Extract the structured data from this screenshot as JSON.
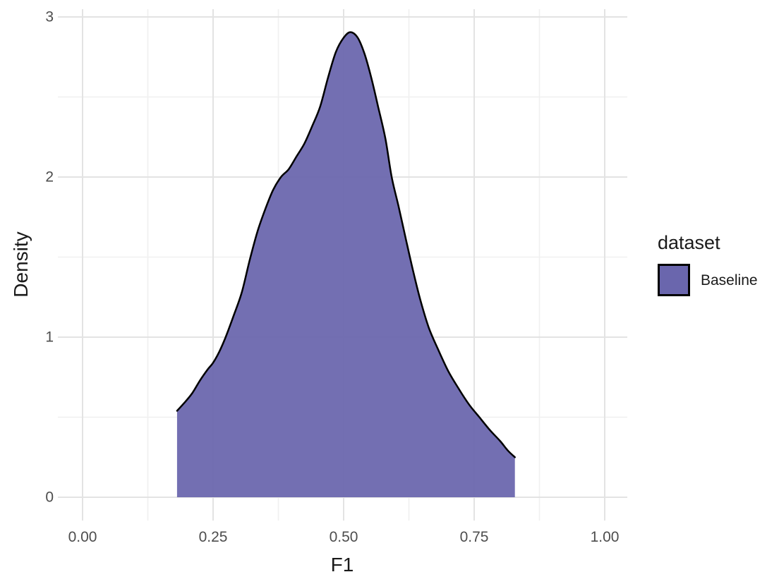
{
  "chart_data": {
    "type": "area",
    "subtype": "density",
    "title": "",
    "xlabel": "F1",
    "ylabel": "Density",
    "x_ticks": [
      0,
      0.25,
      0.5,
      0.75,
      1.0
    ],
    "x_tick_labels": [
      "0.00",
      "0.25",
      "0.50",
      "0.75",
      "1.00"
    ],
    "x_minor_ticks": [
      0.125,
      0.375,
      0.625,
      0.875
    ],
    "y_ticks": [
      0,
      1,
      2,
      3
    ],
    "y_tick_labels": [
      "0",
      "1",
      "2",
      "3"
    ],
    "y_minor_ticks": [
      0.5,
      1.5,
      2.5
    ],
    "xlim": [
      -0.047,
      1.043
    ],
    "ylim": [
      -0.145,
      3.05
    ],
    "grid": true,
    "legend": {
      "title": "dataset",
      "position": "right",
      "entries": [
        {
          "label": "Baseline",
          "fill": "#6A66AD",
          "outline": "#000000"
        }
      ]
    },
    "series": [
      {
        "name": "Baseline",
        "fill": "#6A66AD",
        "fill_opacity": 0.94,
        "stroke": "#000000",
        "stroke_width": 2.5,
        "points": [
          [
            0.181,
            0.54
          ],
          [
            0.195,
            0.59
          ],
          [
            0.21,
            0.65
          ],
          [
            0.225,
            0.73
          ],
          [
            0.24,
            0.8
          ],
          [
            0.25,
            0.84
          ],
          [
            0.262,
            0.91
          ],
          [
            0.274,
            1.0
          ],
          [
            0.29,
            1.14
          ],
          [
            0.305,
            1.28
          ],
          [
            0.32,
            1.48
          ],
          [
            0.335,
            1.66
          ],
          [
            0.35,
            1.8
          ],
          [
            0.365,
            1.92
          ],
          [
            0.38,
            2.0
          ],
          [
            0.395,
            2.05
          ],
          [
            0.41,
            2.13
          ],
          [
            0.425,
            2.21
          ],
          [
            0.44,
            2.32
          ],
          [
            0.455,
            2.44
          ],
          [
            0.47,
            2.62
          ],
          [
            0.485,
            2.78
          ],
          [
            0.5,
            2.87
          ],
          [
            0.513,
            2.905
          ],
          [
            0.527,
            2.87
          ],
          [
            0.54,
            2.77
          ],
          [
            0.553,
            2.62
          ],
          [
            0.566,
            2.44
          ],
          [
            0.58,
            2.24
          ],
          [
            0.592,
            2.0
          ],
          [
            0.605,
            1.82
          ],
          [
            0.62,
            1.6
          ],
          [
            0.634,
            1.4
          ],
          [
            0.648,
            1.22
          ],
          [
            0.663,
            1.06
          ],
          [
            0.68,
            0.93
          ],
          [
            0.7,
            0.79
          ],
          [
            0.72,
            0.68
          ],
          [
            0.74,
            0.58
          ],
          [
            0.76,
            0.5
          ],
          [
            0.78,
            0.42
          ],
          [
            0.8,
            0.35
          ],
          [
            0.815,
            0.29
          ],
          [
            0.828,
            0.25
          ]
        ]
      }
    ],
    "colors": {
      "background": "#FFFFFF",
      "grid_major": "#E3E3E3",
      "grid_minor": "#F0F0F0",
      "axis_text": "#4D4D4D",
      "title_text": "#1A1A1A"
    }
  }
}
